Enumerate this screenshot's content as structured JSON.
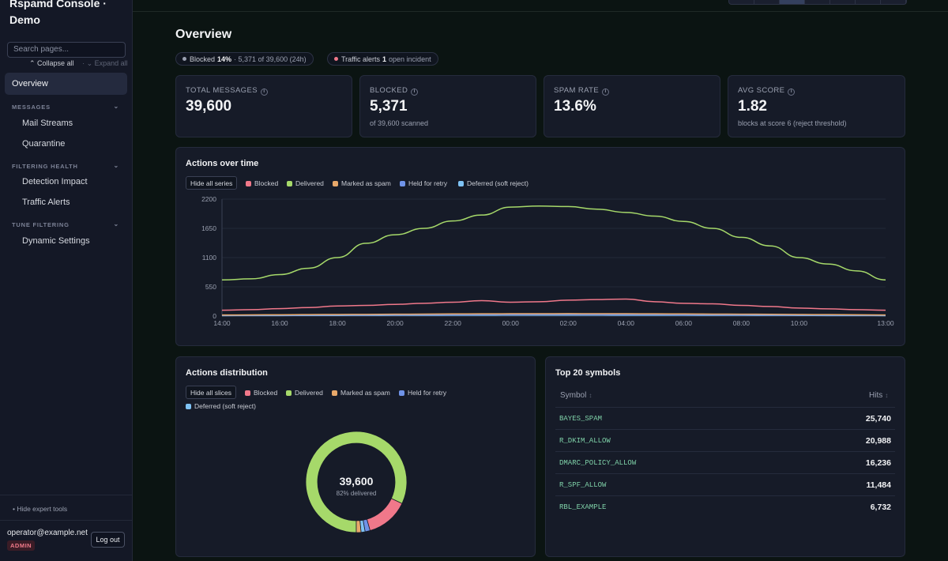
{
  "app": {
    "title": "Rspamd Console · Demo",
    "search_placeholder": "Search pages...",
    "collapse_all": "Collapse all",
    "expand_all": "Expand all"
  },
  "nav": {
    "overview": "Overview",
    "sections": [
      {
        "label": "MESSAGES",
        "items": [
          "Mail Streams",
          "Quarantine"
        ]
      },
      {
        "label": "FILTERING HEALTH",
        "items": [
          "Detection Impact",
          "Traffic Alerts"
        ]
      },
      {
        "label": "TUNE FILTERING",
        "items": [
          "Dynamic Settings"
        ]
      }
    ],
    "hide_expert": "Hide expert tools"
  },
  "user": {
    "email": "operator@example.net",
    "role": "ADMIN",
    "logout": "Log out"
  },
  "page": {
    "title": "Overview",
    "pill_blocked": {
      "label": "Blocked",
      "value": "14%",
      "detail": "· 5,371 of 39,600 (24h)"
    },
    "pill_alerts": {
      "label": "Traffic alerts",
      "value": "1",
      "detail": "open incident"
    }
  },
  "kpis": [
    {
      "label": "TOTAL MESSAGES",
      "value": "39,600",
      "sub": ""
    },
    {
      "label": "BLOCKED",
      "value": "5,371",
      "sub": "of 39,600 scanned"
    },
    {
      "label": "SPAM RATE",
      "value": "13.6%",
      "sub": ""
    },
    {
      "label": "AVG SCORE",
      "value": "1.82",
      "sub": "blocks at score 6 (reject threshold)"
    }
  ],
  "colors": {
    "blocked": "#f0788a",
    "delivered": "#a6d96a",
    "spam": "#e8a86a",
    "retry": "#6f93e8",
    "deferred": "#7fc3f5"
  },
  "line_chart": {
    "title": "Actions over time",
    "hide_button": "Hide all series",
    "legend": [
      "Blocked",
      "Delivered",
      "Marked as spam",
      "Held for retry",
      "Deferred (soft reject)"
    ]
  },
  "donut": {
    "title": "Actions distribution",
    "hide_button": "Hide all slices",
    "legend": [
      "Blocked",
      "Delivered",
      "Marked as spam",
      "Held for retry",
      "Deferred (soft reject)"
    ],
    "center_value": "39,600",
    "center_label": "82% delivered"
  },
  "symbols": {
    "title": "Top 20 symbols",
    "col_symbol": "Symbol",
    "col_hits": "Hits",
    "sort_glyph": "↕",
    "rows": [
      {
        "symbol": "BAYES_SPAM",
        "hits": "25,740"
      },
      {
        "symbol": "R_DKIM_ALLOW",
        "hits": "20,988"
      },
      {
        "symbol": "DMARC_POLICY_ALLOW",
        "hits": "16,236"
      },
      {
        "symbol": "R_SPF_ALLOW",
        "hits": "11,484"
      },
      {
        "symbol": "RBL_EXAMPLE",
        "hits": "6,732"
      }
    ]
  },
  "chart_data": [
    {
      "type": "line",
      "title": "Actions over time",
      "x": [
        "14:00",
        "15:00",
        "16:00",
        "17:00",
        "18:00",
        "19:00",
        "20:00",
        "21:00",
        "22:00",
        "23:00",
        "00:00",
        "01:00",
        "02:00",
        "03:00",
        "04:00",
        "05:00",
        "06:00",
        "07:00",
        "08:00",
        "09:00",
        "10:00",
        "11:00",
        "12:00",
        "13:00"
      ],
      "x_ticks": [
        "14:00",
        "16:00",
        "18:00",
        "20:00",
        "22:00",
        "00:00",
        "02:00",
        "04:00",
        "06:00",
        "08:00",
        "10:00",
        "13:00"
      ],
      "y_ticks": [
        0,
        550,
        1100,
        1650,
        2200
      ],
      "ylim": [
        0,
        2200
      ],
      "series": [
        {
          "name": "Delivered",
          "values": [
            680,
            700,
            780,
            900,
            1100,
            1370,
            1530,
            1650,
            1790,
            1900,
            2050,
            2070,
            2060,
            2010,
            1950,
            1880,
            1780,
            1650,
            1480,
            1320,
            1100,
            980,
            850,
            680
          ]
        },
        {
          "name": "Blocked",
          "values": [
            110,
            120,
            140,
            160,
            190,
            200,
            220,
            240,
            260,
            290,
            260,
            270,
            300,
            310,
            320,
            270,
            240,
            230,
            200,
            180,
            150,
            135,
            120,
            110
          ]
        },
        {
          "name": "Marked as spam",
          "values": [
            20,
            22,
            25,
            28,
            30,
            32,
            35,
            37,
            40,
            42,
            44,
            45,
            46,
            45,
            44,
            42,
            40,
            38,
            36,
            33,
            30,
            27,
            24,
            21
          ]
        },
        {
          "name": "Held for retry",
          "values": [
            14,
            15,
            17,
            18,
            20,
            21,
            23,
            24,
            26,
            27,
            28,
            29,
            29,
            28,
            28,
            27,
            25,
            24,
            22,
            21,
            19,
            17,
            16,
            14
          ]
        },
        {
          "name": "Deferred (soft reject)",
          "values": [
            8,
            9,
            10,
            11,
            12,
            13,
            14,
            15,
            16,
            17,
            18,
            18,
            18,
            18,
            17,
            17,
            16,
            15,
            14,
            13,
            12,
            10,
            9,
            8
          ]
        }
      ]
    },
    {
      "type": "pie",
      "title": "Actions distribution",
      "categories": [
        "Delivered",
        "Blocked",
        "Held for retry",
        "Deferred (soft reject)",
        "Marked as spam"
      ],
      "values": [
        82,
        13.6,
        1.6,
        1.3,
        1.5
      ]
    }
  ]
}
